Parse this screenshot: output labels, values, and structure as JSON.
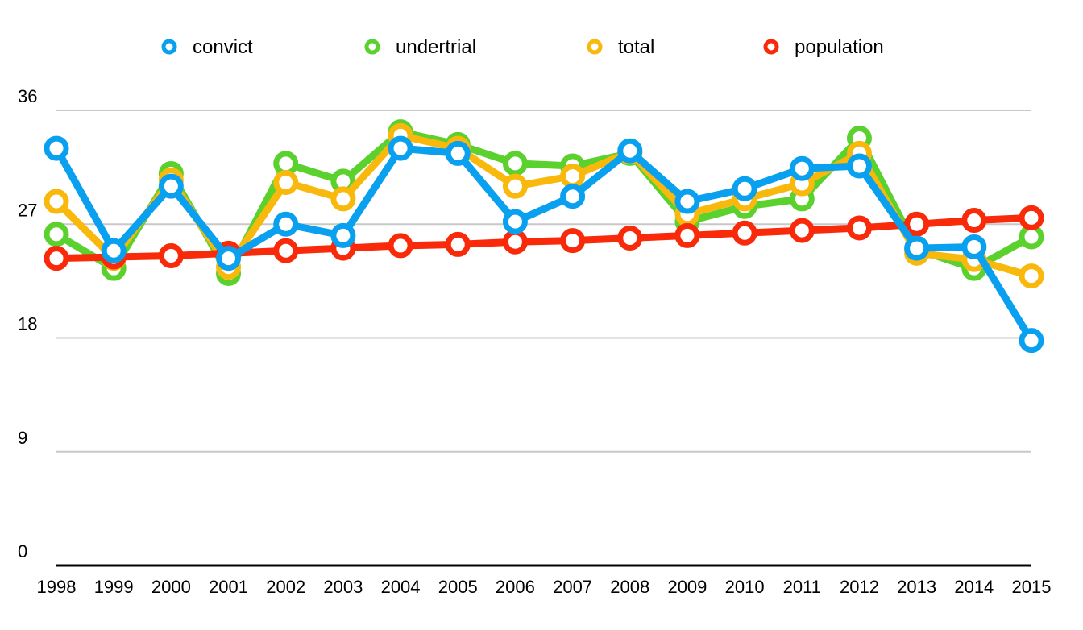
{
  "chart_data": {
    "type": "line",
    "title": "",
    "xlabel": "",
    "ylabel": "",
    "x": [
      "1998",
      "1999",
      "2000",
      "2001",
      "2002",
      "2003",
      "2004",
      "2005",
      "2006",
      "2007",
      "2008",
      "2009",
      "2010",
      "2011",
      "2012",
      "2013",
      "2014",
      "2015"
    ],
    "ylim": [
      0,
      36
    ],
    "yticks": [
      "0",
      "9",
      "18",
      "27",
      "36"
    ],
    "grid": true,
    "legend_position": "top",
    "series": [
      {
        "name": "convict",
        "color": "#0aa0f0",
        "values": [
          33.0,
          24.9,
          30.0,
          24.3,
          27.0,
          26.1,
          33.0,
          32.6,
          27.2,
          29.2,
          32.8,
          28.8,
          29.8,
          31.4,
          31.6,
          25.1,
          25.2,
          17.8
        ]
      },
      {
        "name": "undertrial",
        "color": "#5bd12e",
        "values": [
          26.2,
          23.5,
          31.0,
          23.1,
          31.8,
          30.4,
          34.3,
          33.3,
          31.8,
          31.6,
          32.6,
          27.2,
          28.4,
          29.0,
          33.8,
          25.0,
          23.5,
          26.0
        ]
      },
      {
        "name": "total",
        "color": "#f8b80c",
        "values": [
          28.8,
          24.3,
          30.5,
          23.6,
          30.3,
          29.0,
          34.0,
          33.0,
          30.0,
          30.8,
          32.7,
          27.8,
          29.0,
          30.2,
          32.6,
          24.7,
          24.2,
          22.9
        ]
      },
      {
        "name": "population",
        "color": "#f82a0a",
        "values": [
          24.3,
          24.4,
          24.5,
          24.7,
          24.9,
          25.1,
          25.3,
          25.4,
          25.6,
          25.7,
          25.9,
          26.1,
          26.3,
          26.5,
          26.7,
          27.0,
          27.3,
          27.5
        ]
      }
    ]
  }
}
